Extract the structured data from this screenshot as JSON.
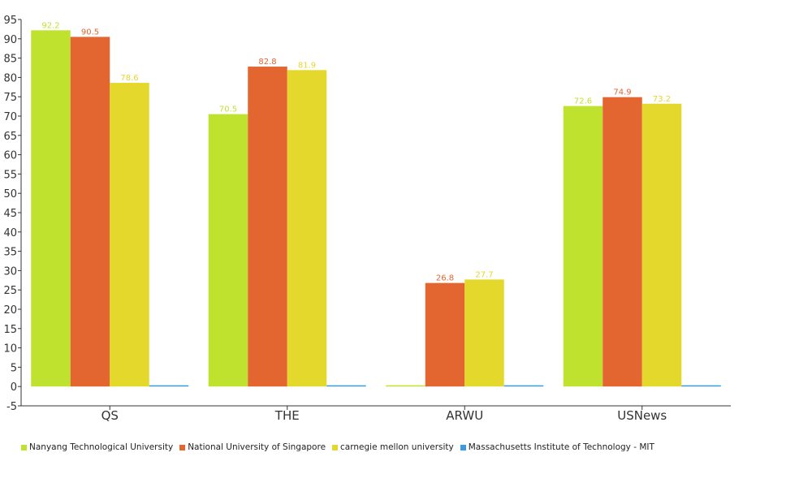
{
  "chart_data": {
    "type": "bar",
    "categories": [
      "QS",
      "THE",
      "ARWU",
      "USNews"
    ],
    "series": [
      {
        "name": "Nanyang Technological University",
        "color": "#bfe22f",
        "values": [
          92.2,
          70.5,
          0,
          72.6
        ]
      },
      {
        "name": "National University of Singapore",
        "color": "#e3652f",
        "values": [
          90.5,
          82.8,
          26.8,
          74.9
        ]
      },
      {
        "name": "carnegie mellon university",
        "color": "#e4d82d",
        "values": [
          78.6,
          81.9,
          27.7,
          73.2
        ]
      },
      {
        "name": "Massachusetts Institute of Technology - MIT",
        "color": "#3b9be0",
        "values": [
          0,
          0,
          0,
          0
        ]
      }
    ],
    "data_labels": [
      [
        "92.2",
        "70.5",
        "",
        "72.6"
      ],
      [
        "90.5",
        "82.8",
        "26.8",
        "74.9"
      ],
      [
        "78.6",
        "81.9",
        "27.7",
        "73.2"
      ],
      [
        "",
        "",
        "",
        ""
      ]
    ],
    "y_ticks": [
      "-5",
      "0",
      "5",
      "10",
      "15",
      "20",
      "25",
      "30",
      "35",
      "40",
      "45",
      "50",
      "55",
      "60",
      "65",
      "70",
      "75",
      "80",
      "85",
      "90",
      "95"
    ],
    "ylim": [
      -5,
      95
    ],
    "xlabel": "",
    "ylabel": "",
    "legend_position": "bottom-left",
    "grid": false
  }
}
